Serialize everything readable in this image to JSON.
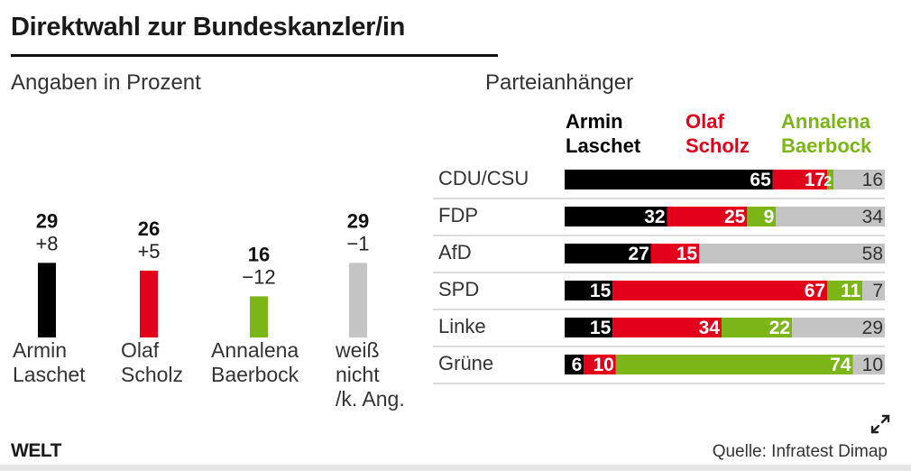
{
  "header": {
    "title": "Direktwahl zur Bundeskanzler/in",
    "subtitle": "Angaben in Prozent",
    "subtitle_right": "Parteianhänger"
  },
  "footer": {
    "logo": "WELT",
    "source": "Quelle: Infratest Dimap"
  },
  "icons": {
    "expand": "expand-arrows-icon"
  },
  "colors": {
    "laschet": "#000000",
    "scholz": "#e2001a",
    "baerbock": "#7cb518",
    "undecided": "#c4c4c4"
  },
  "chart_data": [
    {
      "type": "bar",
      "title": "",
      "categories": [
        "Armin Laschet",
        "Olaf Scholz",
        "Annalena Baerbock",
        "weiß nicht /k. Ang."
      ],
      "category_lines": [
        [
          "Armin",
          "Laschet"
        ],
        [
          "Olaf",
          "Scholz"
        ],
        [
          "Annalena",
          "Baerbock"
        ],
        [
          "weiß",
          "nicht",
          "/k. Ang."
        ]
      ],
      "values": [
        29,
        26,
        16,
        29
      ],
      "changes": [
        "+8",
        "+5",
        "−12",
        "−1"
      ],
      "colors": [
        "#000000",
        "#e2001a",
        "#7cb518",
        "#c4c4c4"
      ]
    },
    {
      "type": "bar",
      "stacked": true,
      "orientation": "horizontal",
      "title": "Parteianhänger",
      "categories": [
        "CDU/CSU",
        "FDP",
        "AfD",
        "SPD",
        "Linke",
        "Grüne"
      ],
      "series": [
        {
          "name": "Armin Laschet",
          "name_lines": [
            "Armin",
            "Laschet"
          ],
          "color": "#000000",
          "values": [
            65,
            32,
            27,
            15,
            15,
            6
          ]
        },
        {
          "name": "Olaf Scholz",
          "name_lines": [
            "Olaf",
            "Scholz"
          ],
          "color": "#e2001a",
          "values": [
            17,
            25,
            15,
            67,
            34,
            10
          ]
        },
        {
          "name": "Annalena Baerbock",
          "name_lines": [
            "Annalena",
            "Baerbock"
          ],
          "color": "#7cb518",
          "values": [
            2,
            9,
            0,
            11,
            22,
            74
          ]
        },
        {
          "name": "",
          "color": "#c4c4c4",
          "values": [
            16,
            34,
            58,
            7,
            29,
            10
          ]
        }
      ]
    }
  ]
}
